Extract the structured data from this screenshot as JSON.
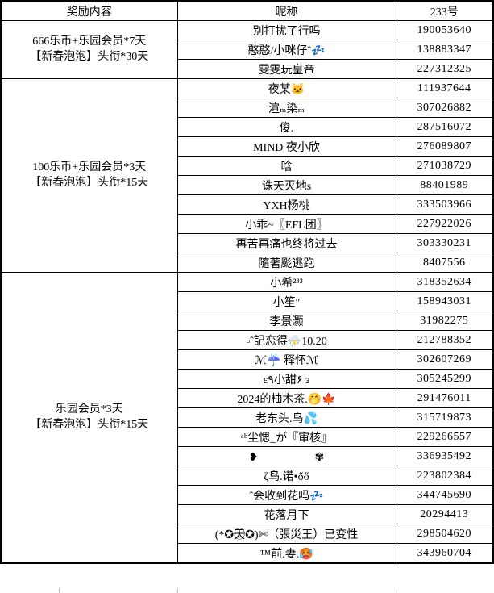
{
  "table": {
    "headers": [
      "奖励内容",
      "昵称",
      "233号"
    ],
    "groups": [
      {
        "reward_line1": "666乐币+乐园会员*7天",
        "reward_line2": "【新春泡泡】头衔*30天",
        "rows": [
          {
            "nickname": "别打扰了行吗",
            "uid": "190053640"
          },
          {
            "nickname": "憨憨/小咪仔ˆ💤",
            "uid": "138883347"
          },
          {
            "nickname": "雯雯玩皇帝",
            "uid": "227312325"
          }
        ]
      },
      {
        "reward_line1": "100乐币+乐园会员*3天",
        "reward_line2": "【新春泡泡】头衔*15天",
        "rows": [
          {
            "nickname": "夜某🐱",
            "uid": "111937644"
          },
          {
            "nickname": "渲ₘ染ₘ",
            "uid": "307026882"
          },
          {
            "nickname": "俊.",
            "uid": "287516072"
          },
          {
            "nickname": "MIND 夜小欣",
            "uid": "276089807"
          },
          {
            "nickname": "晗",
            "uid": "271038729"
          },
          {
            "nickname": "诛天灭地s",
            "uid": "88401989"
          },
          {
            "nickname": "YXH杨桃",
            "uid": "333503966"
          },
          {
            "nickname": "小乖~〖EFL团〗",
            "uid": "227922026"
          },
          {
            "nickname": "再苦再痛也终将过去",
            "uid": "303330231"
          },
          {
            "nickname": "隨著颩逃跑",
            "uid": "8407556"
          }
        ]
      },
      {
        "reward_line1": "乐园会员*3天",
        "reward_line2": "【新春泡泡】头衔*15天",
        "rows": [
          {
            "nickname": "小希²³³",
            "uid": "318352634"
          },
          {
            "nickname": "小笙″",
            "uid": "158943031"
          },
          {
            "nickname": "李景灏",
            "uid": "31982275"
          },
          {
            "nickname": "▫ˆ記恋得⛈️10.20",
            "uid": "212788352"
          },
          {
            "nickname": "ℳ☔ 释怀ℳ",
            "uid": "302607269"
          },
          {
            "nickname": "ε٩小甜۶ з",
            "uid": "305245299"
          },
          {
            "nickname": "2024的柚木茶.🤭🍁",
            "uid": "291476011"
          },
          {
            "nickname": "老东头.鸟💦",
            "uid": "315719873"
          },
          {
            "nickname": "ᵃᵇ尘愢_が『审核』",
            "uid": "229266557"
          },
          {
            "nickname": "❥　　　　　✾",
            "uid": "336935492"
          },
          {
            "nickname": "ζ鸟.诺•őő",
            "uid": "223802384"
          },
          {
            "nickname": "ˆ会收到花吗💤",
            "uid": "344745690"
          },
          {
            "nickname": "花落月下",
            "uid": "20294413"
          },
          {
            "nickname": "(*✪天⃝✪)✄（張災王）已变性",
            "uid": "298504620"
          },
          {
            "nickname": "™前.妻.🥵",
            "uid": "343960704"
          }
        ]
      }
    ]
  }
}
